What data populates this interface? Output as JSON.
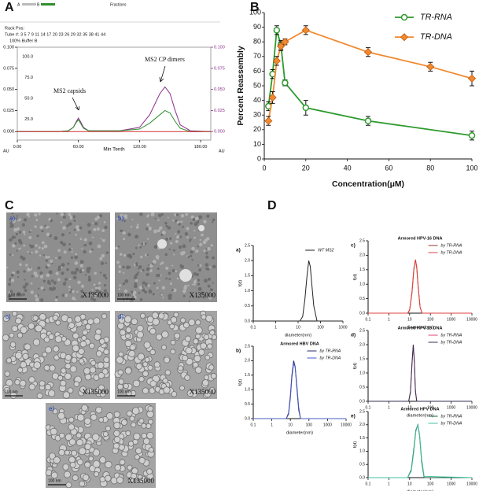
{
  "panels": [
    "A",
    "B",
    "C",
    "D"
  ],
  "chart_data": [
    {
      "type": "line",
      "frame": "box",
      "fraction_bar_labels": [
        "A",
        "B"
      ],
      "strip_title": "Fractions",
      "rack": "Rack Pos:",
      "tubes": "Tube #: 3 5 7 9 11 14 17 20 23 26 29 32 35 38 41 44",
      "buffer": "100% Buffer B",
      "xlabel": "Min Tenth",
      "corner_labels": [
        "AU",
        "AU"
      ],
      "annotations": [
        "MS2 capsids",
        "MS2 CP dimers"
      ],
      "xlim": [
        0,
        190
      ],
      "xticks": [
        {
          "value": 0,
          "label": "0.00"
        },
        {
          "value": 60,
          "label": "60.00"
        },
        {
          "value": 120,
          "label": "120.00"
        },
        {
          "value": 180,
          "label": "180.00"
        }
      ],
      "ylim": [
        -0.01,
        0.1
      ],
      "yticks": [
        {
          "value": 0,
          "label": "0.000"
        },
        {
          "value": 0.025,
          "label": "0.025"
        },
        {
          "value": 0.05,
          "label": "0.050"
        },
        {
          "value": 0.075,
          "label": "0.075"
        },
        {
          "value": 0.1,
          "label": "0.100"
        }
      ],
      "y2ticks": [
        {
          "value": 0,
          "label": "0.000"
        },
        {
          "value": 0.025,
          "label": "0.025"
        },
        {
          "value": 0.05,
          "label": "0.050"
        },
        {
          "value": 0.075,
          "label": "0.075"
        },
        {
          "value": 0.1,
          "label": "0.100"
        }
      ],
      "buffer_lim": [
        0,
        100
      ],
      "buffer_ticks": [
        {
          "value": 25,
          "label": "25.0"
        },
        {
          "value": 50,
          "label": "50.0"
        },
        {
          "value": 75,
          "label": "75.0"
        },
        {
          "value": 100,
          "label": "100.0"
        }
      ],
      "x": [
        0,
        40,
        50,
        55,
        58,
        60,
        62,
        65,
        70,
        100,
        120,
        130,
        140,
        145,
        150,
        155,
        160,
        170,
        190
      ],
      "series": [
        {
          "color": "#8a2f8a",
          "values": [
            0,
            0,
            0.001,
            0.005,
            0.012,
            0.016,
            0.012,
            0.005,
            0.001,
            0.001,
            0.005,
            0.02,
            0.045,
            0.053,
            0.045,
            0.025,
            0.008,
            0.001,
            0
          ]
        },
        {
          "color": "#2f8f2f",
          "values": [
            0,
            0,
            0.001,
            0.005,
            0.011,
            0.014,
            0.01,
            0.004,
            0.001,
            0.001,
            0.003,
            0.01,
            0.02,
            0.025,
            0.022,
            0.012,
            0.004,
            0,
            0
          ]
        },
        {
          "color": "#d03030",
          "values": [
            0,
            0,
            0,
            0,
            0,
            0,
            0,
            0,
            0,
            0,
            0,
            0,
            0,
            0,
            0,
            0,
            0,
            0,
            0
          ]
        }
      ]
    },
    {
      "type": "line",
      "markers": true,
      "legend": "upper right",
      "xlabel": "Concentration(μM)",
      "ylabel": "Percent Reassembly",
      "xlim": [
        0,
        100
      ],
      "xticks": [
        0,
        20,
        40,
        60,
        80,
        100
      ],
      "ylim": [
        0,
        100
      ],
      "yticks": [
        0,
        10,
        20,
        30,
        40,
        50,
        60,
        70,
        80,
        90,
        100
      ],
      "series": [
        {
          "name": "TR-RNA",
          "color": "#2e9a2e",
          "marker": "circle",
          "x": [
            2,
            4,
            6,
            8,
            10,
            20,
            50,
            100
          ],
          "values": [
            36,
            58,
            88,
            78,
            52,
            35,
            26,
            16
          ],
          "errors": [
            3,
            3,
            3,
            3,
            2,
            5,
            3,
            3
          ]
        },
        {
          "name": "TR-DNA",
          "color": "#f08a30",
          "marker": "diamond",
          "x": [
            2,
            4,
            6,
            8,
            10,
            20,
            50,
            80,
            100
          ],
          "values": [
            26,
            42,
            67,
            77,
            80,
            88,
            73,
            63,
            55
          ],
          "errors": [
            3,
            4,
            3,
            3,
            2,
            3,
            3,
            3,
            5
          ]
        }
      ]
    },
    {
      "type": "line",
      "xscale": "log",
      "label": "a)",
      "legend": "upper right",
      "xlabel": "diameter(nm)",
      "ylabel": "f(d)",
      "xlim": [
        0.1,
        1000
      ],
      "xticks": [
        0.1,
        1,
        10,
        100,
        1000
      ],
      "ylim": [
        0,
        2.5
      ],
      "yticks": [
        {
          "value": 0,
          "label": "0.0"
        },
        0.5,
        {
          "value": 1,
          "label": "1.0"
        },
        1.5,
        {
          "value": 2,
          "label": "2.0"
        },
        2.5
      ],
      "x": [
        0.1,
        12,
        16,
        20,
        25,
        30,
        35,
        40,
        50,
        70,
        1000
      ],
      "series": [
        {
          "name": "WT MS2",
          "color": "#222222",
          "values": [
            0,
            0,
            0.15,
            0.7,
            1.5,
            2.0,
            1.8,
            1.3,
            0.5,
            0,
            0
          ]
        }
      ]
    },
    {
      "type": "line",
      "xscale": "log",
      "label": "b)",
      "title": "Armored HBV DNA",
      "legend": "upper right",
      "xlabel": "diameter(nm)",
      "ylabel": "f(d)",
      "xlim": [
        0.1,
        10000
      ],
      "xticks": [
        0.1,
        1,
        10,
        100,
        1000,
        10000
      ],
      "ylim": [
        0,
        2.5
      ],
      "yticks": [
        {
          "value": 0,
          "label": "0.0"
        },
        0.5,
        {
          "value": 1,
          "label": "1.0"
        },
        1.5,
        {
          "value": 2,
          "label": "2.0"
        },
        2.5
      ],
      "x": [
        0.1,
        6,
        8,
        10,
        12,
        15,
        18,
        22,
        28,
        35,
        10000
      ],
      "series": [
        {
          "name": "by TR-RNA",
          "color": "#2b2b6b",
          "values": [
            0,
            0,
            0.2,
            0.8,
            1.5,
            2.0,
            1.8,
            1.1,
            0.3,
            0,
            0
          ]
        },
        {
          "name": "by TR-DNA",
          "color": "#4a5cc4",
          "values": [
            0,
            0,
            0.15,
            0.7,
            1.4,
            1.9,
            1.8,
            1.2,
            0.4,
            0,
            0
          ]
        }
      ]
    },
    {
      "type": "line",
      "xscale": "log",
      "label": "c)",
      "title": "Armored HPV-16 DNA",
      "legend": "upper right",
      "xlabel": "diameter(nm)",
      "ylabel": "f(d)",
      "xlim": [
        0.1,
        10000
      ],
      "xticks": [
        0.1,
        1,
        10,
        100,
        1000,
        10000
      ],
      "ylim": [
        0,
        2.5
      ],
      "yticks": [
        {
          "value": 0,
          "label": "0.0"
        },
        0.5,
        {
          "value": 1,
          "label": "1.0"
        },
        1.5,
        {
          "value": 2,
          "label": "2.0"
        },
        2.5
      ],
      "x": [
        0.1,
        8,
        10,
        13,
        16,
        19,
        22,
        26,
        32,
        40,
        10000
      ],
      "series": [
        {
          "name": "by TR-RNA",
          "color": "#8b3a2a",
          "values": [
            0,
            0,
            0.1,
            0.7,
            1.5,
            1.85,
            1.6,
            0.9,
            0.2,
            0,
            0
          ]
        },
        {
          "name": "by TR-DNA",
          "color": "#e24040",
          "values": [
            0,
            0,
            0.12,
            0.75,
            1.55,
            1.85,
            1.55,
            0.85,
            0.2,
            0,
            0
          ]
        }
      ]
    },
    {
      "type": "line",
      "xscale": "log",
      "label": "d)",
      "title": "Armored HPV-18 DNA",
      "legend": "upper right",
      "xlabel": "diameter(nm)",
      "ylabel": "f(d)",
      "xlim": [
        0.1,
        10000
      ],
      "xticks": [
        0.1,
        1,
        10,
        100,
        1000,
        10000
      ],
      "ylim": [
        0,
        2.5
      ],
      "yticks": [
        {
          "value": 0,
          "label": "0.0"
        },
        0.5,
        {
          "value": 1,
          "label": "1.0"
        },
        1.5,
        {
          "value": 2,
          "label": "2.0"
        },
        2.5
      ],
      "x": [
        0.1,
        9,
        11,
        13,
        15,
        17,
        19,
        22,
        10000
      ],
      "series": [
        {
          "name": "by TR-RNA",
          "color": "#e0407a",
          "values": [
            0,
            0,
            0.3,
            1.3,
            2.0,
            1.4,
            0.4,
            0,
            0
          ]
        },
        {
          "name": "by TR-DNA",
          "color": "#303050",
          "values": [
            0,
            0,
            0.35,
            1.35,
            2.0,
            1.35,
            0.35,
            0,
            0
          ]
        }
      ]
    },
    {
      "type": "line",
      "xscale": "log",
      "label": "e)",
      "title": "Armored HPV DNA",
      "legend": "upper right",
      "xlabel": "diameter(nm)",
      "ylabel": "f(d)",
      "xlim": [
        0.1,
        10000
      ],
      "xticks": [
        0.1,
        1,
        10,
        100,
        1000,
        10000
      ],
      "ylim": [
        0,
        2.5
      ],
      "yticks": [
        {
          "value": 0,
          "label": "0.0"
        },
        0.5,
        {
          "value": 1,
          "label": "1.0"
        },
        1.5,
        {
          "value": 2,
          "label": "2.0"
        },
        2.5
      ],
      "x": [
        0.1,
        8,
        12,
        16,
        20,
        25,
        30,
        38,
        50,
        10000
      ],
      "series": [
        {
          "name": "by TR-RNA",
          "color": "#1a5a3a",
          "values": [
            0,
            0,
            0.3,
            1.1,
            1.8,
            2.0,
            1.6,
            0.6,
            0,
            0
          ]
        },
        {
          "name": "by TR-DNA",
          "color": "#40c0a0",
          "values": [
            0,
            0,
            0.25,
            1.0,
            1.75,
            2.0,
            1.65,
            0.7,
            0.05,
            0
          ]
        }
      ]
    }
  ],
  "micrographs": [
    {
      "label": "a)",
      "magnification": "X135000",
      "scale": "100 nm"
    },
    {
      "label": "b)",
      "magnification": "X135000",
      "scale": "100 nm"
    },
    {
      "label": "c)",
      "magnification": "X135000",
      "scale": "100 nm"
    },
    {
      "label": "d)",
      "magnification": "X135000",
      "scale": "100 nm"
    },
    {
      "label": "e)",
      "magnification": "X135000",
      "scale": "100 nm"
    }
  ]
}
